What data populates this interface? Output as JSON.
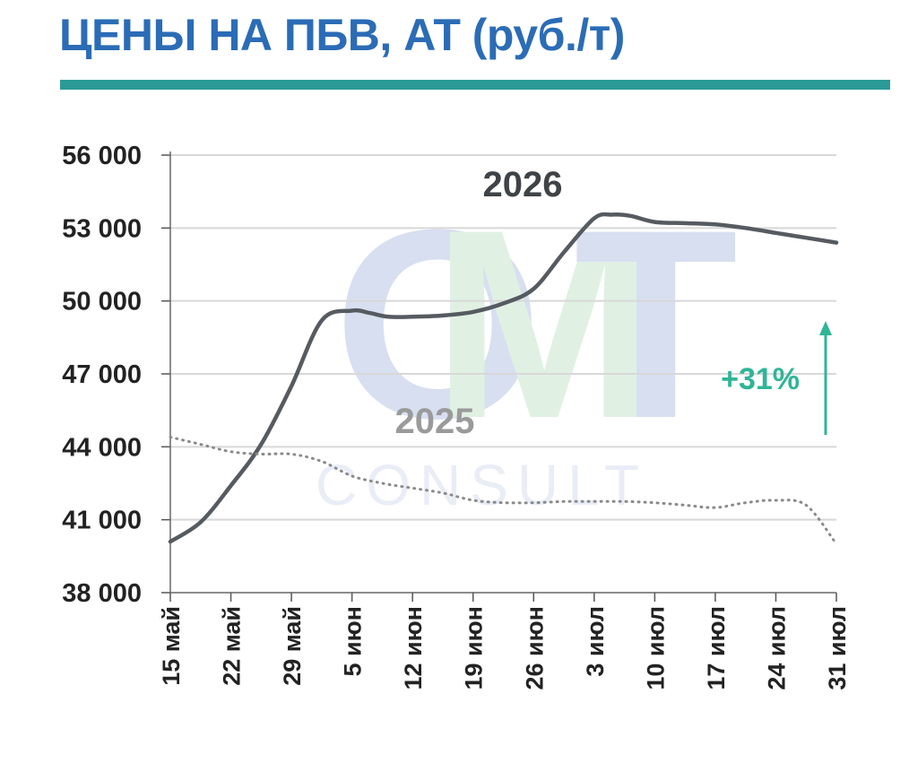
{
  "header": {
    "title": "ЦЕНЫ НА ПБВ, АТ (руб./т)"
  },
  "watermark": {
    "letters": [
      "O",
      "M",
      "T"
    ],
    "text": "CONSULT"
  },
  "colors": {
    "title": "#2b6cb6",
    "rule": "#2b9a97",
    "line2026": "#555b60",
    "line2025": "#8a8a8a",
    "growth": "#2fb597"
  },
  "chart_data": {
    "type": "line",
    "title": "ЦЕНЫ НА ПБВ, АТ (руб./т)",
    "xlabel": "",
    "ylabel": "",
    "categories": [
      "15 май",
      "22 май",
      "29 май",
      "5 июн",
      "12 июн",
      "19 июн",
      "26 июн",
      "3 июл",
      "10 июл",
      "17 июл",
      "24 июл",
      "31 июл"
    ],
    "y_ticks": [
      "38 000",
      "41 000",
      "44 000",
      "47 000",
      "50 000",
      "53 000",
      "56 000"
    ],
    "ylim": [
      38000,
      56000
    ],
    "grid": true,
    "series": [
      {
        "name": "2026",
        "style": "solid",
        "x": [
          0,
          0.5,
          1,
          1.5,
          2,
          2.5,
          3,
          3.3,
          3.6,
          4,
          4.5,
          5,
          5.5,
          6,
          6.5,
          7,
          7.3,
          7.6,
          8,
          8.5,
          9,
          9.5,
          10,
          10.5,
          11
        ],
        "values": [
          40100,
          40900,
          42400,
          44100,
          46500,
          49200,
          49600,
          49500,
          49350,
          49350,
          49400,
          49550,
          49900,
          50500,
          52000,
          53400,
          53550,
          53500,
          53250,
          53200,
          53150,
          53000,
          52800,
          52600,
          52400
        ]
      },
      {
        "name": "2025",
        "style": "dotted",
        "x": [
          0,
          0.5,
          1,
          1.5,
          2,
          2.5,
          3,
          3.5,
          4,
          4.5,
          5,
          5.5,
          6,
          6.5,
          7,
          7.5,
          8,
          8.5,
          9,
          9.5,
          10,
          10.5,
          11
        ],
        "values": [
          44400,
          44100,
          43800,
          43700,
          43700,
          43400,
          42800,
          42500,
          42300,
          42100,
          41800,
          41700,
          41700,
          41750,
          41750,
          41750,
          41700,
          41600,
          41500,
          41700,
          41800,
          41600,
          40000
        ]
      }
    ],
    "annotations": [
      {
        "text": "+31%",
        "type": "arrow-up",
        "x": 11
      },
      {
        "text": "2026",
        "series": "2026"
      },
      {
        "text": "2025",
        "series": "2025"
      }
    ]
  }
}
